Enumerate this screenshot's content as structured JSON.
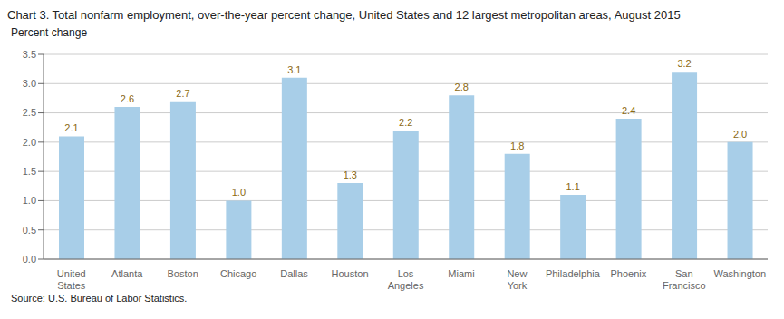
{
  "chart_data": {
    "type": "bar",
    "title": "Chart 3. Total nonfarm employment, over-the-year percent change, United States and 12 largest metropolitan areas, August  2015",
    "ylabel": "Percent change",
    "source": "Source: U.S. Bureau of Labor Statistics.",
    "categories": [
      "United\nStates",
      "Atlanta",
      "Boston",
      "Chicago",
      "Dallas",
      "Houston",
      "Los\nAngeles",
      "Miami",
      "New\nYork",
      "Philadelphia",
      "Phoenix",
      "San\nFrancisco",
      "Washington"
    ],
    "values": [
      2.1,
      2.6,
      2.7,
      1.0,
      3.1,
      1.3,
      2.2,
      2.8,
      1.8,
      1.1,
      2.4,
      3.2,
      2.0
    ],
    "value_labels": [
      "2.1",
      "2.6",
      "2.7",
      "1.0",
      "3.1",
      "1.3",
      "2.2",
      "2.8",
      "1.8",
      "1.1",
      "2.4",
      "3.2",
      "2.0"
    ],
    "color": "#A8CEE8",
    "data_labels": true,
    "ylim": [
      0,
      3.5
    ],
    "yticks": [
      {
        "value": 0.0,
        "label": "0.0"
      },
      0.5,
      {
        "value": 1.0,
        "label": "1.0"
      },
      1.5,
      {
        "value": 2.0,
        "label": "2.0"
      },
      2.5,
      {
        "value": 3.0,
        "label": "3.0"
      },
      3.5
    ],
    "grid": true
  }
}
